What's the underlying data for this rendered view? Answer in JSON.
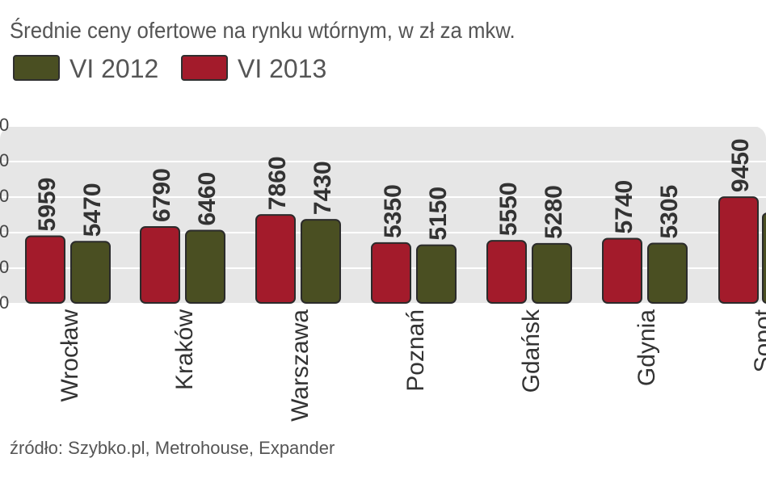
{
  "title": "Średnie ceny ofertowe na rynku wtórnym, w zł za mkw.",
  "source": "źródło: Szybko.pl, Metrohouse, Expander",
  "colors": {
    "vi2013": "#a31b2b",
    "vi2012": "#4a4f22",
    "band": "#e6e6e6",
    "text": "#333333"
  },
  "chart_data": {
    "type": "bar",
    "title": "Średnie ceny ofertowe na rynku wtórnym, w zł za mkw.",
    "xlabel": "",
    "ylabel": "",
    "categories": [
      "Wrocław",
      "Kraków",
      "Warszawa",
      "Poznań",
      "Gdańsk",
      "Gdynia",
      "Sopot"
    ],
    "series": [
      {
        "name": "VI 2013",
        "color": "#a31b2b",
        "values": [
          5959,
          6790,
          7860,
          5350,
          5550,
          5740,
          9450
        ]
      },
      {
        "name": "VI 2012",
        "color": "#4a4f22",
        "values": [
          5470,
          6460,
          7430,
          5150,
          5280,
          5305,
          null
        ]
      }
    ],
    "value_labels": {
      "series0": [
        "5959",
        "6790",
        "7860",
        "5350",
        "5550",
        "5740",
        "9450"
      ],
      "series1": [
        "5470",
        "6460",
        "7430",
        "5150",
        "5280",
        "5305",
        ""
      ]
    },
    "legend": [
      {
        "label": "VI 2012",
        "color": "#4a4f22"
      },
      {
        "label": "VI 2013",
        "color": "#a31b2b"
      }
    ],
    "legend_position": "top-left",
    "y_tick_labels": [
      "0",
      "0",
      "0",
      "0",
      "0",
      "0"
    ],
    "grid": true
  }
}
